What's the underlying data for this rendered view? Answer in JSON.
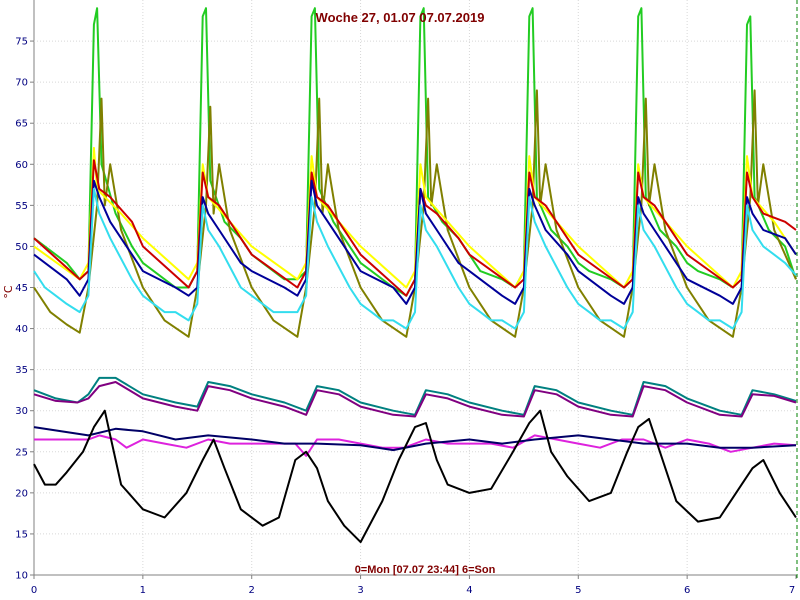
{
  "chart_data": {
    "type": "line",
    "title": "Woche 27, 01.07   07.07.2019",
    "footer": "0=Mon [07.07 23:44] 6=Son",
    "ylabel": "°C",
    "xlabel": "",
    "xlim": [
      0,
      7
    ],
    "ylim": [
      10,
      80
    ],
    "x_ticks": [
      0,
      1,
      2,
      3,
      4,
      5,
      6,
      7
    ],
    "y_ticks": [
      10,
      15,
      20,
      25,
      30,
      35,
      40,
      45,
      50,
      55,
      60,
      65,
      70,
      75
    ],
    "grid": true,
    "series": [
      {
        "color": "#22cc22",
        "x": [
          0,
          0.3,
          0.42,
          0.5,
          0.55,
          0.58,
          0.62,
          0.75,
          0.9,
          1.0,
          1.1,
          1.3,
          1.42,
          1.5,
          1.55,
          1.58,
          1.62,
          1.75,
          1.9,
          2.0,
          2.1,
          2.3,
          2.42,
          2.5,
          2.55,
          2.58,
          2.62,
          2.75,
          2.9,
          3.0,
          3.1,
          3.3,
          3.42,
          3.5,
          3.55,
          3.58,
          3.62,
          3.75,
          3.9,
          4.0,
          4.1,
          4.3,
          4.42,
          4.5,
          4.55,
          4.58,
          4.62,
          4.75,
          4.9,
          5.0,
          5.1,
          5.3,
          5.42,
          5.5,
          5.55,
          5.58,
          5.62,
          5.75,
          5.9,
          6.0,
          6.1,
          6.3,
          6.42,
          6.5,
          6.55,
          6.58,
          6.62,
          6.75,
          6.9,
          7.0
        ],
        "y": [
          51,
          48,
          46,
          47,
          77,
          79,
          60,
          54,
          50,
          48,
          47,
          45,
          45,
          47,
          78,
          79,
          58,
          53,
          51,
          49,
          48,
          46,
          46,
          47,
          78,
          79,
          57,
          53,
          50,
          48,
          47,
          45,
          44,
          46,
          78,
          79,
          56,
          53,
          51,
          49,
          47,
          46,
          45,
          47,
          78,
          79,
          56,
          52,
          50,
          48,
          47,
          46,
          45,
          46,
          78,
          79,
          56,
          52,
          50,
          48,
          47,
          46,
          45,
          46,
          77,
          78,
          56,
          52,
          50,
          46
        ]
      },
      {
        "color": "#808000",
        "x": [
          0,
          0.15,
          0.3,
          0.42,
          0.5,
          0.58,
          0.62,
          0.65,
          0.7,
          0.8,
          1.0,
          1.2,
          1.42,
          1.5,
          1.58,
          1.62,
          1.65,
          1.7,
          1.8,
          2.0,
          2.2,
          2.42,
          2.5,
          2.58,
          2.62,
          2.65,
          2.7,
          2.8,
          3.0,
          3.2,
          3.42,
          3.5,
          3.58,
          3.62,
          3.65,
          3.7,
          3.8,
          4.0,
          4.2,
          4.42,
          4.5,
          4.58,
          4.62,
          4.65,
          4.7,
          4.8,
          5.0,
          5.2,
          5.42,
          5.5,
          5.58,
          5.62,
          5.65,
          5.7,
          5.8,
          6.0,
          6.2,
          6.42,
          6.5,
          6.58,
          6.62,
          6.65,
          6.7,
          6.8,
          7.0
        ],
        "y": [
          45,
          42,
          40.5,
          39.5,
          45,
          55,
          68,
          55,
          60,
          52,
          45,
          41,
          39,
          45,
          55,
          67,
          54,
          60,
          52,
          45,
          41,
          39,
          45,
          55,
          68,
          54,
          60,
          52,
          45,
          41,
          39,
          45,
          55,
          68,
          55,
          60,
          52,
          45,
          41,
          39,
          45,
          55,
          69,
          55,
          60,
          52,
          45,
          41,
          39,
          45,
          55,
          68,
          55,
          60,
          52,
          45,
          41,
          39,
          45,
          56,
          69,
          55,
          60,
          52,
          46
        ]
      },
      {
        "color": "#ffff00",
        "x": [
          0,
          0.42,
          0.5,
          0.55,
          0.58,
          0.65,
          0.8,
          1.0,
          1.42,
          1.5,
          1.55,
          1.6,
          1.8,
          2.0,
          2.42,
          2.5,
          2.55,
          2.6,
          2.8,
          3.0,
          3.42,
          3.5,
          3.55,
          3.6,
          3.8,
          4.0,
          4.42,
          4.5,
          4.55,
          4.6,
          4.8,
          5.0,
          5.42,
          5.5,
          5.55,
          5.6,
          5.8,
          6.0,
          6.42,
          6.5,
          6.55,
          6.6,
          6.8,
          7.0
        ],
        "y": [
          50,
          46,
          48,
          62,
          57,
          56,
          54,
          51,
          46,
          48,
          60,
          56,
          53,
          50,
          46,
          48,
          61,
          56,
          53,
          50,
          45,
          47,
          60,
          56,
          53,
          50,
          45,
          47,
          61,
          56,
          53,
          50,
          45,
          47,
          60,
          56,
          53,
          50,
          45,
          47,
          61,
          56,
          53,
          49
        ]
      },
      {
        "color": "#cc0000",
        "x": [
          0,
          0.42,
          0.5,
          0.55,
          0.6,
          0.7,
          0.9,
          1.0,
          1.42,
          1.5,
          1.55,
          1.6,
          1.7,
          1.9,
          2.0,
          2.42,
          2.5,
          2.55,
          2.6,
          2.7,
          2.9,
          3.0,
          3.42,
          3.5,
          3.55,
          3.6,
          3.7,
          3.9,
          4.0,
          4.42,
          4.5,
          4.55,
          4.6,
          4.7,
          4.9,
          5.0,
          5.42,
          5.5,
          5.55,
          5.6,
          5.7,
          5.9,
          6.0,
          6.42,
          6.5,
          6.55,
          6.6,
          6.7,
          6.9,
          7.0
        ],
        "y": [
          51,
          46,
          47,
          60.5,
          57,
          56,
          53,
          50,
          45,
          47,
          59,
          56,
          55,
          51,
          49,
          45,
          47,
          59,
          56,
          55,
          51,
          49,
          44,
          46,
          57,
          55,
          54,
          51,
          49,
          45,
          46,
          59,
          56,
          55,
          51,
          49,
          45,
          46,
          59,
          56,
          55,
          51,
          49,
          45,
          46,
          59,
          56,
          54,
          53,
          52
        ]
      },
      {
        "color": "#000099",
        "x": [
          0,
          0.3,
          0.42,
          0.5,
          0.55,
          0.6,
          0.7,
          0.9,
          1.0,
          1.3,
          1.42,
          1.5,
          1.55,
          1.6,
          1.7,
          1.9,
          2.0,
          2.3,
          2.42,
          2.5,
          2.55,
          2.6,
          2.7,
          2.9,
          3.0,
          3.3,
          3.42,
          3.5,
          3.55,
          3.6,
          3.7,
          3.9,
          4.0,
          4.3,
          4.42,
          4.5,
          4.55,
          4.6,
          4.7,
          4.9,
          5.0,
          5.3,
          5.42,
          5.5,
          5.55,
          5.6,
          5.7,
          5.9,
          6.0,
          6.3,
          6.42,
          6.5,
          6.55,
          6.6,
          6.7,
          6.9,
          7.0
        ],
        "y": [
          49,
          46,
          44,
          46,
          58,
          56,
          53,
          49,
          47,
          45,
          44,
          45,
          56,
          54,
          52,
          48,
          47,
          45,
          44,
          46,
          58,
          55,
          53,
          49,
          47,
          45,
          43,
          45,
          57,
          54,
          52,
          48,
          47,
          44,
          43,
          45,
          57,
          55,
          52,
          49,
          47,
          44,
          43,
          45,
          56,
          54,
          52,
          48,
          46,
          44,
          43,
          45,
          56,
          54,
          52,
          51,
          49
        ]
      },
      {
        "color": "#33ddee",
        "x": [
          0,
          0.1,
          0.2,
          0.3,
          0.42,
          0.5,
          0.55,
          0.6,
          0.7,
          0.9,
          1.0,
          1.1,
          1.2,
          1.3,
          1.42,
          1.5,
          1.55,
          1.6,
          1.7,
          1.9,
          2.0,
          2.1,
          2.2,
          2.3,
          2.42,
          2.5,
          2.55,
          2.6,
          2.7,
          2.9,
          3.0,
          3.1,
          3.2,
          3.3,
          3.42,
          3.5,
          3.55,
          3.6,
          3.7,
          3.9,
          4.0,
          4.1,
          4.2,
          4.3,
          4.42,
          4.5,
          4.55,
          4.6,
          4.7,
          4.9,
          5.0,
          5.1,
          5.2,
          5.3,
          5.42,
          5.5,
          5.55,
          5.6,
          5.7,
          5.9,
          6.0,
          6.1,
          6.2,
          6.3,
          6.42,
          6.5,
          6.55,
          6.6,
          6.7,
          6.9,
          7.0
        ],
        "y": [
          47,
          45,
          44,
          43,
          42,
          44,
          57,
          54,
          51,
          46,
          44,
          43,
          42,
          42,
          41,
          43,
          55,
          52,
          50,
          45,
          44,
          43,
          42,
          42,
          42,
          44,
          56,
          53,
          50,
          45,
          43,
          42,
          41,
          41,
          40,
          42,
          55,
          52,
          50,
          45,
          43,
          42,
          41,
          41,
          40,
          42,
          56,
          53,
          50,
          45,
          43,
          42,
          41,
          41,
          40,
          42,
          55,
          52,
          50,
          45,
          43,
          42,
          41,
          41,
          40,
          42,
          55,
          52,
          50,
          48,
          46.5
        ]
      },
      {
        "color": "#008080",
        "x": [
          0,
          0.2,
          0.4,
          0.5,
          0.6,
          0.75,
          1.0,
          1.3,
          1.5,
          1.6,
          1.8,
          2.0,
          2.3,
          2.5,
          2.6,
          2.8,
          3.0,
          3.3,
          3.5,
          3.6,
          3.8,
          4.0,
          4.3,
          4.5,
          4.6,
          4.8,
          5.0,
          5.3,
          5.5,
          5.6,
          5.8,
          6.0,
          6.3,
          6.5,
          6.6,
          6.8,
          7.0
        ],
        "y": [
          32.5,
          31.5,
          31,
          32,
          34,
          34,
          32,
          31,
          30.5,
          33.5,
          33,
          32,
          31,
          30,
          33,
          32.5,
          31,
          30,
          29.5,
          32.5,
          32,
          31,
          30,
          29.5,
          33,
          32.5,
          31,
          30,
          29.5,
          33.5,
          33,
          31.5,
          30,
          29.5,
          32.5,
          32,
          31.2
        ]
      },
      {
        "color": "#800080",
        "x": [
          0,
          0.2,
          0.4,
          0.5,
          0.6,
          0.75,
          1.0,
          1.3,
          1.5,
          1.6,
          1.8,
          2.0,
          2.3,
          2.5,
          2.6,
          2.8,
          3.0,
          3.3,
          3.5,
          3.6,
          3.8,
          4.0,
          4.3,
          4.5,
          4.6,
          4.8,
          5.0,
          5.3,
          5.5,
          5.6,
          5.8,
          6.0,
          6.3,
          6.5,
          6.6,
          6.8,
          7.0
        ],
        "y": [
          32,
          31.2,
          31,
          31.5,
          33,
          33.5,
          31.5,
          30.5,
          30,
          33,
          32.5,
          31.5,
          30.5,
          29.5,
          32.5,
          32,
          30.5,
          29.5,
          29.3,
          32,
          31.5,
          30.5,
          29.5,
          29.3,
          32.5,
          32,
          30.5,
          29.5,
          29.3,
          33,
          32.5,
          31,
          29.5,
          29.3,
          32,
          31.8,
          31
        ]
      },
      {
        "color": "#dd22dd",
        "x": [
          0,
          0.5,
          0.6,
          0.75,
          0.85,
          1.0,
          1.2,
          1.4,
          1.6,
          1.8,
          2.0,
          2.2,
          2.4,
          2.5,
          2.6,
          2.8,
          3.0,
          3.2,
          3.4,
          3.6,
          3.8,
          4.0,
          4.2,
          4.4,
          4.6,
          4.8,
          5.0,
          5.2,
          5.4,
          5.6,
          5.8,
          6.0,
          6.2,
          6.4,
          6.6,
          6.8,
          7.0
        ],
        "y": [
          26.5,
          26.5,
          27,
          26.5,
          25.5,
          26.5,
          26,
          25.5,
          26.5,
          26,
          26,
          26,
          26,
          24.5,
          26.5,
          26.5,
          26,
          25.5,
          25.5,
          26.5,
          26,
          26,
          26,
          25.5,
          27,
          26.5,
          26,
          25.5,
          26.5,
          26.5,
          25.5,
          26.5,
          26,
          25,
          25.5,
          26,
          25.8
        ]
      },
      {
        "color": "#000066",
        "x": [
          0,
          0.5,
          0.75,
          1.0,
          1.3,
          1.6,
          2.0,
          2.3,
          2.6,
          3.0,
          3.3,
          3.6,
          4.0,
          4.3,
          4.6,
          5.0,
          5.3,
          5.6,
          6.0,
          6.3,
          6.6,
          7.0
        ],
        "y": [
          28,
          27,
          27.8,
          27.5,
          26.5,
          27,
          26.5,
          26,
          26,
          25.8,
          25.2,
          26,
          26.5,
          26,
          26.5,
          27,
          26.5,
          26,
          26,
          25.5,
          25.5,
          25.8
        ]
      },
      {
        "color": "#000000",
        "x": [
          0,
          0.1,
          0.2,
          0.3,
          0.45,
          0.55,
          0.65,
          0.7,
          0.8,
          1.0,
          1.2,
          1.4,
          1.55,
          1.65,
          1.75,
          1.9,
          2.1,
          2.25,
          2.4,
          2.5,
          2.6,
          2.7,
          2.85,
          3.0,
          3.2,
          3.35,
          3.5,
          3.6,
          3.7,
          3.8,
          4.0,
          4.2,
          4.4,
          4.55,
          4.65,
          4.75,
          4.9,
          5.1,
          5.3,
          5.45,
          5.55,
          5.65,
          5.75,
          5.9,
          6.1,
          6.3,
          6.5,
          6.6,
          6.7,
          6.85,
          7.0
        ],
        "y": [
          23.5,
          21,
          21,
          22.5,
          25,
          28,
          30,
          27,
          21,
          18,
          17,
          20,
          24,
          26.5,
          23,
          18,
          16,
          17,
          24,
          25,
          23,
          19,
          16,
          14,
          19,
          24,
          28,
          28.5,
          24,
          21,
          20,
          20.5,
          25,
          28.5,
          30,
          25,
          22,
          19,
          20,
          25,
          28,
          29,
          25,
          19,
          16.5,
          17,
          21,
          23,
          24,
          20,
          17
        ]
      }
    ]
  }
}
